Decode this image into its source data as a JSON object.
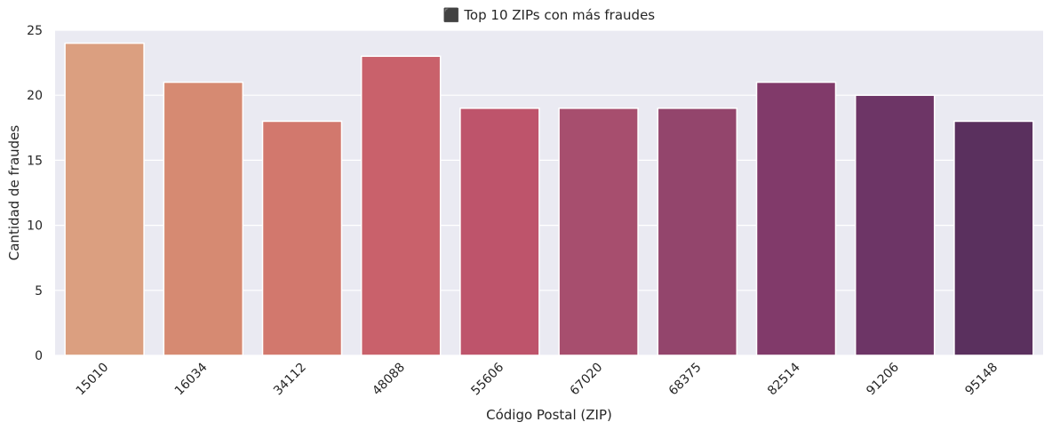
{
  "chart_data": {
    "type": "bar",
    "title": "⬛ Top 10 ZIPs con más fraudes",
    "xlabel": "Código Postal (ZIP)",
    "ylabel": "Cantidad de fraudes",
    "categories": [
      "15010",
      "16034",
      "34112",
      "48088",
      "55606",
      "67020",
      "68375",
      "82514",
      "91206",
      "95148"
    ],
    "values": [
      24,
      21,
      18,
      23,
      19,
      19,
      19,
      21,
      20,
      18
    ],
    "ylim": [
      0,
      25
    ],
    "yticks": [
      0,
      5,
      10,
      15,
      20,
      25
    ],
    "grid": true,
    "colors": [
      "#DB9F80",
      "#D68A72",
      "#D2786D",
      "#C9616B",
      "#BE546B",
      "#A74E6E",
      "#93456C",
      "#813A6A",
      "#6D3566",
      "#5A305E"
    ],
    "background": "#EAEAF2"
  }
}
